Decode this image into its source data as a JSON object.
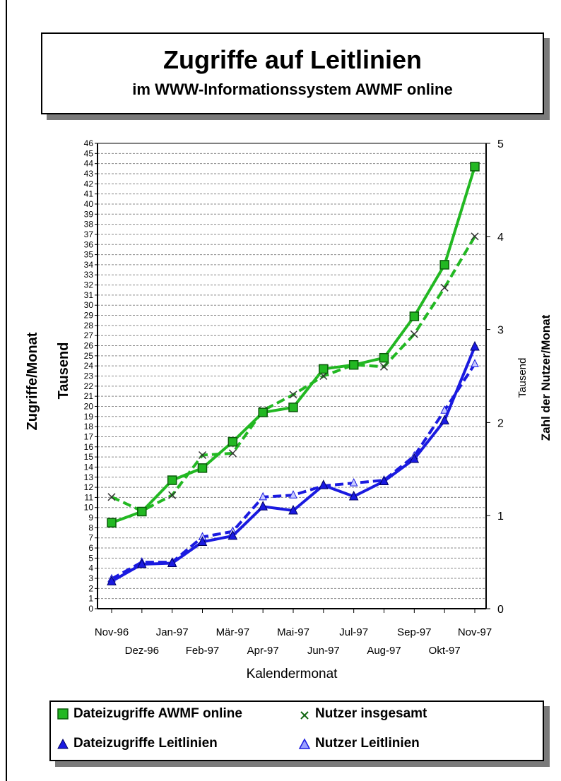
{
  "title": "Zugriffe auf Leitlinien",
  "subtitle": "im WWW-Informationssystem AWMF online",
  "chart_data": {
    "type": "line",
    "categories": [
      "Nov-96",
      "Dez-96",
      "Jan-97",
      "Feb-97",
      "Mär-97",
      "Apr-97",
      "Mai-97",
      "Jun-97",
      "Jul-97",
      "Aug-97",
      "Sep-97",
      "Okt-97",
      "Nov-97"
    ],
    "xlabel": "Kalendermonat",
    "ylabel_left": "Zugriffe/Monat",
    "ylabel_left_unit": "Tausend",
    "ylabel_right": "Zahl der Nutzer/Monat",
    "ylabel_right_unit": "Tausend",
    "ylim_left": [
      0,
      46
    ],
    "ylim_right": [
      0,
      5
    ],
    "grid": true,
    "legend_position": "bottom",
    "series": [
      {
        "name": "Dateizugriffe AWMF online",
        "axis": "left",
        "values": [
          8.5,
          9.6,
          12.7,
          13.9,
          16.5,
          19.4,
          19.9,
          23.7,
          24.1,
          24.8,
          28.9,
          34,
          43.7
        ],
        "color": "#22b822",
        "style": "solid",
        "marker": "square"
      },
      {
        "name": "Nutzer insgesamt",
        "axis": "right",
        "values": [
          1.2,
          1.05,
          1.22,
          1.65,
          1.67,
          2.13,
          2.3,
          2.5,
          2.62,
          2.6,
          2.95,
          3.45,
          4.0
        ],
        "color": "#22b822",
        "style": "dashed",
        "marker": "x"
      },
      {
        "name": "Dateizugriffe Leitlinien",
        "axis": "left",
        "values": [
          2.7,
          4.4,
          4.5,
          6.6,
          7.2,
          10.1,
          9.7,
          12.2,
          11.1,
          12.6,
          14.8,
          18.6,
          25.9
        ],
        "color": "#1a1ae0",
        "style": "solid",
        "marker": "triangle"
      },
      {
        "name": "Nutzer Leitlinien",
        "axis": "right",
        "values": [
          0.32,
          0.5,
          0.5,
          0.77,
          0.83,
          1.2,
          1.22,
          1.32,
          1.35,
          1.38,
          1.64,
          2.13,
          2.63
        ],
        "color": "#1a1ae0",
        "style": "dashed",
        "marker": "triangle-open"
      }
    ]
  }
}
